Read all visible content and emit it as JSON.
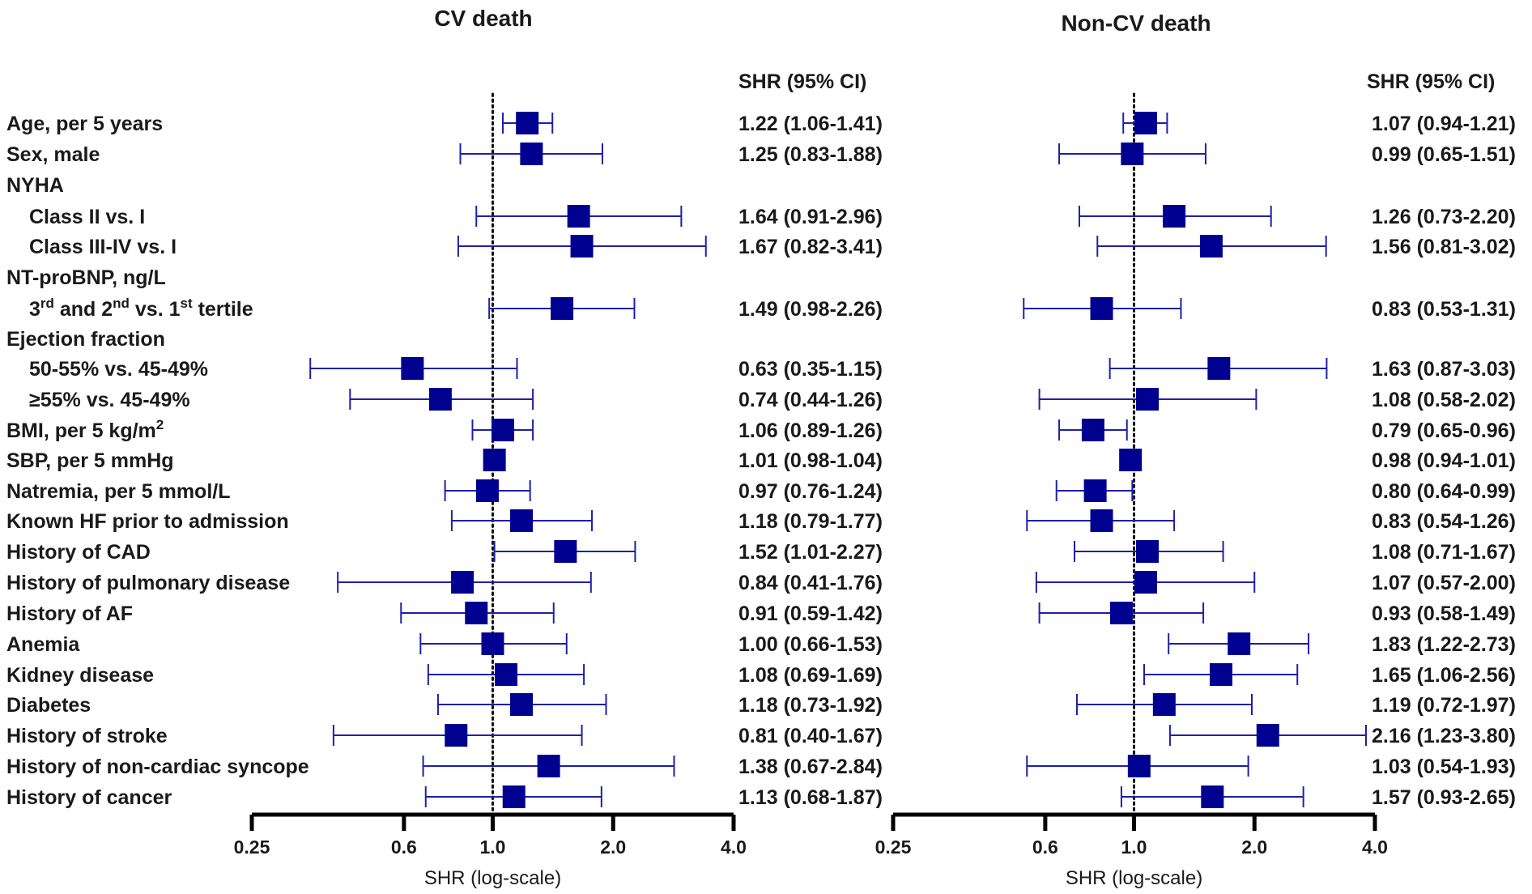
{
  "chart_data": {
    "type": "forest",
    "panels": [
      {
        "title": "CV death",
        "values_header": "SHR (95% CI)",
        "xlabel": "SHR (log-scale)",
        "scale": "log",
        "xlim": [
          0.25,
          4.0
        ],
        "xticks": [
          0.25,
          0.6,
          1.0,
          2.0,
          4.0
        ],
        "xtick_labels": [
          "0.25",
          "0.6",
          "1.0",
          "2.0",
          "4.0"
        ],
        "reference_line": 1.0,
        "estimates": [
          1.22,
          1.25,
          null,
          1.64,
          1.67,
          null,
          1.49,
          null,
          0.63,
          0.74,
          1.06,
          1.01,
          0.97,
          1.18,
          1.52,
          0.84,
          0.91,
          1.0,
          1.08,
          1.18,
          0.81,
          1.38,
          1.13
        ],
        "lower": [
          1.06,
          0.83,
          null,
          0.91,
          0.82,
          null,
          0.98,
          null,
          0.35,
          0.44,
          0.89,
          0.98,
          0.76,
          0.79,
          1.01,
          0.41,
          0.59,
          0.66,
          0.69,
          0.73,
          0.4,
          0.67,
          0.68
        ],
        "upper": [
          1.41,
          1.88,
          null,
          2.96,
          3.41,
          null,
          2.26,
          null,
          1.15,
          1.26,
          1.26,
          1.04,
          1.24,
          1.77,
          2.27,
          1.76,
          1.42,
          1.53,
          1.69,
          1.92,
          1.67,
          2.84,
          1.87
        ],
        "value_labels": [
          "1.22 (1.06-1.41)",
          "1.25 (0.83-1.88)",
          "",
          "1.64 (0.91-2.96)",
          "1.67 (0.82-3.41)",
          "",
          "1.49 (0.98-2.26)",
          "",
          "0.63 (0.35-1.15)",
          "0.74 (0.44-1.26)",
          "1.06 (0.89-1.26)",
          "1.01 (0.98-1.04)",
          "0.97 (0.76-1.24)",
          "1.18 (0.79-1.77)",
          "1.52 (1.01-2.27)",
          "0.84 (0.41-1.76)",
          "0.91 (0.59-1.42)",
          "1.00 (0.66-1.53)",
          "1.08 (0.69-1.69)",
          "1.18 (0.73-1.92)",
          "0.81 (0.40-1.67)",
          "1.38 (0.67-2.84)",
          "1.13 (0.68-1.87)"
        ]
      },
      {
        "title": "Non-CV death",
        "values_header": "SHR (95% CI)",
        "xlabel": "SHR (log-scale)",
        "scale": "log",
        "xlim": [
          0.25,
          4.0
        ],
        "xticks": [
          0.25,
          0.6,
          1.0,
          2.0,
          4.0
        ],
        "xtick_labels": [
          "0.25",
          "0.6",
          "1.0",
          "2.0",
          "4.0"
        ],
        "reference_line": 1.0,
        "estimates": [
          1.07,
          0.99,
          null,
          1.26,
          1.56,
          null,
          0.83,
          null,
          1.63,
          1.08,
          0.79,
          0.98,
          0.8,
          0.83,
          1.08,
          1.07,
          0.93,
          1.83,
          1.65,
          1.19,
          2.16,
          1.03,
          1.57
        ],
        "lower": [
          0.94,
          0.65,
          null,
          0.73,
          0.81,
          null,
          0.53,
          null,
          0.87,
          0.58,
          0.65,
          0.94,
          0.64,
          0.54,
          0.71,
          0.57,
          0.58,
          1.22,
          1.06,
          0.72,
          1.23,
          0.54,
          0.93
        ],
        "upper": [
          1.21,
          1.51,
          null,
          2.2,
          3.02,
          null,
          1.31,
          null,
          3.03,
          2.02,
          0.96,
          1.01,
          0.99,
          1.26,
          1.67,
          2.0,
          1.49,
          2.73,
          2.56,
          1.97,
          3.8,
          1.93,
          2.65
        ],
        "value_labels": [
          "1.07 (0.94-1.21)",
          "0.99 (0.65-1.51)",
          "",
          "1.26 (0.73-2.20)",
          "1.56 (0.81-3.02)",
          "",
          "0.83 (0.53-1.31)",
          "",
          "1.63 (0.87-3.03)",
          "1.08 (0.58-2.02)",
          "0.79 (0.65-0.96)",
          "0.98 (0.94-1.01)",
          "0.80 (0.64-0.99)",
          "0.83 (0.54-1.26)",
          "1.08 (0.71-1.67)",
          "1.07 (0.57-2.00)",
          "0.93 (0.58-1.49)",
          "1.83 (1.22-2.73)",
          "1.65 (1.06-2.56)",
          "1.19 (0.72-1.97)",
          "2.16 (1.23-3.80)",
          "1.03 (0.54-1.93)",
          "1.57 (0.93-2.65)"
        ]
      }
    ],
    "rows": [
      {
        "label": "Age, per 5 years",
        "indent": false
      },
      {
        "label": "Sex, male",
        "indent": false
      },
      {
        "label": "NYHA",
        "indent": false
      },
      {
        "label": "Class II vs. I",
        "indent": true
      },
      {
        "label": "Class III-IV vs. I",
        "indent": true
      },
      {
        "label": "NT-proBNP, ng/L",
        "indent": false
      },
      {
        "label": "3rd and 2nd vs. 1st tertile",
        "indent": true
      },
      {
        "label": "Ejection fraction",
        "indent": false
      },
      {
        "label": "50-55% vs. 45-49%",
        "indent": true
      },
      {
        "label": "≥55% vs. 45-49%",
        "indent": true
      },
      {
        "label": "BMI, per 5 kg/m2",
        "indent": false
      },
      {
        "label": "SBP, per 5 mmHg",
        "indent": false
      },
      {
        "label": "Natremia, per 5 mmol/L",
        "indent": false
      },
      {
        "label": "Known HF prior to admission",
        "indent": false
      },
      {
        "label": "History of CAD",
        "indent": false
      },
      {
        "label": "History of pulmonary disease",
        "indent": false
      },
      {
        "label": "History of AF",
        "indent": false
      },
      {
        "label": "Anemia",
        "indent": false
      },
      {
        "label": "Kidney disease",
        "indent": false
      },
      {
        "label": "Diabetes",
        "indent": false
      },
      {
        "label": "History of stroke",
        "indent": false
      },
      {
        "label": "History of non-cardiac syncope",
        "indent": false
      },
      {
        "label": "History of cancer",
        "indent": false
      }
    ],
    "marker_color": "#000090",
    "ci_color": "#1f1fa8"
  }
}
